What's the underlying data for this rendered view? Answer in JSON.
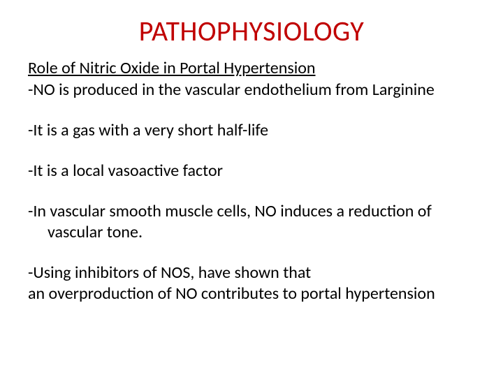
{
  "colors": {
    "title": "#c00000",
    "body": "#000000",
    "background": "#ffffff"
  },
  "title": "PATHOPHYSIOLOGY",
  "subtitle": "Role of Nitric Oxide in Portal Hypertension",
  "points": {
    "p1": "-NO is produced in the vascular endothelium from Larginine",
    "p2": "-It is a gas with a very short half-life",
    "p3": "-It is a local vasoactive factor",
    "p4a": "-In vascular smooth muscle cells, NO induces a reduction of",
    "p4b": "vascular tone.",
    "p5a": "-Using inhibitors of NOS, have shown that",
    "p5b": "an overproduction of NO contributes to portal hypertension"
  },
  "font": {
    "title_size": 40,
    "body_size": 24
  }
}
